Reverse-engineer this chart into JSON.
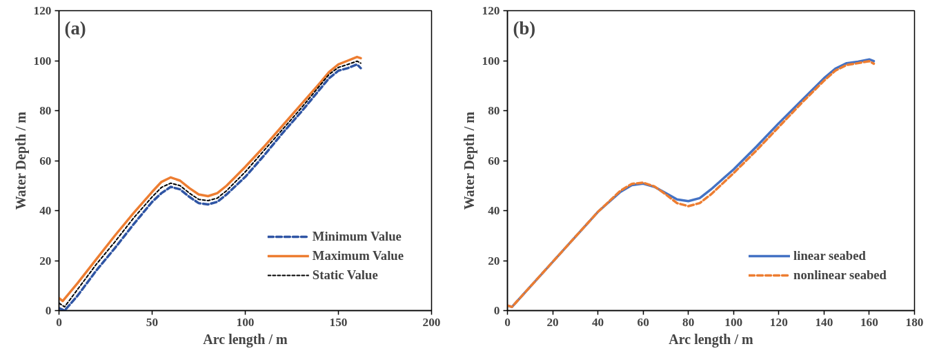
{
  "chart_data": [
    {
      "type": "line",
      "annotations": [
        "(a)"
      ],
      "xlabel": "Arc length / m",
      "ylabel": "Water Depth / m",
      "xlim": [
        0,
        200
      ],
      "xticks": [
        0,
        50,
        100,
        150,
        200
      ],
      "ylim": [
        0,
        120
      ],
      "yticks": [
        0,
        20,
        40,
        60,
        80,
        100,
        120
      ],
      "grid": false,
      "legend": "bottom right",
      "series": [
        {
          "name": "Minimum Value",
          "color": "#2f55a4",
          "line_style": "dashed",
          "x": [
            0,
            3,
            10,
            20,
            30,
            40,
            50,
            55,
            60,
            65,
            70,
            75,
            80,
            85,
            90,
            100,
            110,
            120,
            130,
            140,
            145,
            150,
            155,
            160,
            162
          ],
          "values": [
            1,
            0,
            6,
            16,
            25,
            34.5,
            43.5,
            47,
            49.5,
            48.5,
            45.5,
            43,
            42.5,
            43.5,
            46.5,
            53.5,
            62,
            71,
            79.5,
            88.5,
            93,
            96,
            97,
            98.5,
            97
          ]
        },
        {
          "name": "Maximum Value",
          "color": "#ed7d31",
          "line_style": "solid",
          "x": [
            0,
            2,
            10,
            20,
            30,
            40,
            50,
            55,
            60,
            65,
            70,
            75,
            80,
            85,
            90,
            100,
            110,
            120,
            130,
            140,
            145,
            150,
            155,
            160,
            162
          ],
          "values": [
            5,
            3.8,
            11,
            20.5,
            30,
            39,
            47.5,
            51.5,
            53.3,
            52,
            49,
            46.5,
            45.8,
            47,
            50,
            57.5,
            65.5,
            74,
            82.5,
            91,
            95.5,
            98.5,
            100,
            101.5,
            101
          ]
        },
        {
          "name": "Static Value",
          "color": "#000000",
          "line_style": "dotted",
          "x": [
            0,
            3,
            10,
            20,
            30,
            40,
            50,
            55,
            60,
            65,
            70,
            75,
            80,
            85,
            90,
            100,
            110,
            120,
            130,
            140,
            145,
            150,
            155,
            160,
            162
          ],
          "values": [
            3,
            1.5,
            8.5,
            18.5,
            27.5,
            37,
            45.5,
            49.3,
            51,
            50,
            47,
            44.5,
            44,
            45,
            48,
            55.5,
            64,
            72.5,
            81,
            90,
            94.5,
            97.3,
            98.5,
            99.8,
            99
          ]
        }
      ]
    },
    {
      "type": "line",
      "annotations": [
        "(b)"
      ],
      "xlabel": "Arc length / m",
      "ylabel": "Water Depth / m",
      "xlim": [
        0,
        180
      ],
      "xticks": [
        0,
        20,
        40,
        60,
        80,
        100,
        120,
        140,
        160,
        180
      ],
      "ylim": [
        0,
        120
      ],
      "yticks": [
        0,
        20,
        40,
        60,
        80,
        100,
        120
      ],
      "grid": false,
      "legend": "bottom right",
      "series": [
        {
          "name": "linear seabed",
          "color": "#4472c4",
          "line_style": "solid",
          "x": [
            0,
            2,
            10,
            20,
            30,
            40,
            50,
            55,
            60,
            65,
            70,
            75,
            80,
            85,
            90,
            100,
            110,
            120,
            130,
            140,
            145,
            150,
            155,
            160,
            162
          ],
          "values": [
            2,
            1.5,
            9.5,
            19.5,
            29.5,
            39.5,
            47.5,
            50.2,
            50.8,
            49.5,
            47,
            44.5,
            43.8,
            45,
            48.5,
            56.5,
            65.5,
            75,
            84,
            93,
            96.8,
            99,
            99.6,
            100.5,
            99.8
          ]
        },
        {
          "name": "nonlinear seabed",
          "color": "#ed7d31",
          "line_style": "dashed",
          "x": [
            0,
            2,
            10,
            20,
            30,
            40,
            50,
            55,
            60,
            65,
            70,
            75,
            80,
            85,
            90,
            100,
            110,
            120,
            130,
            140,
            145,
            150,
            155,
            160,
            162
          ],
          "values": [
            2,
            1.5,
            9.5,
            19.5,
            29.5,
            39.5,
            48,
            50.7,
            51.2,
            49.7,
            46.5,
            43,
            41.8,
            43,
            46.5,
            55,
            64,
            73.5,
            83,
            92,
            96,
            98.3,
            99,
            99.8,
            98.8
          ]
        }
      ]
    }
  ]
}
